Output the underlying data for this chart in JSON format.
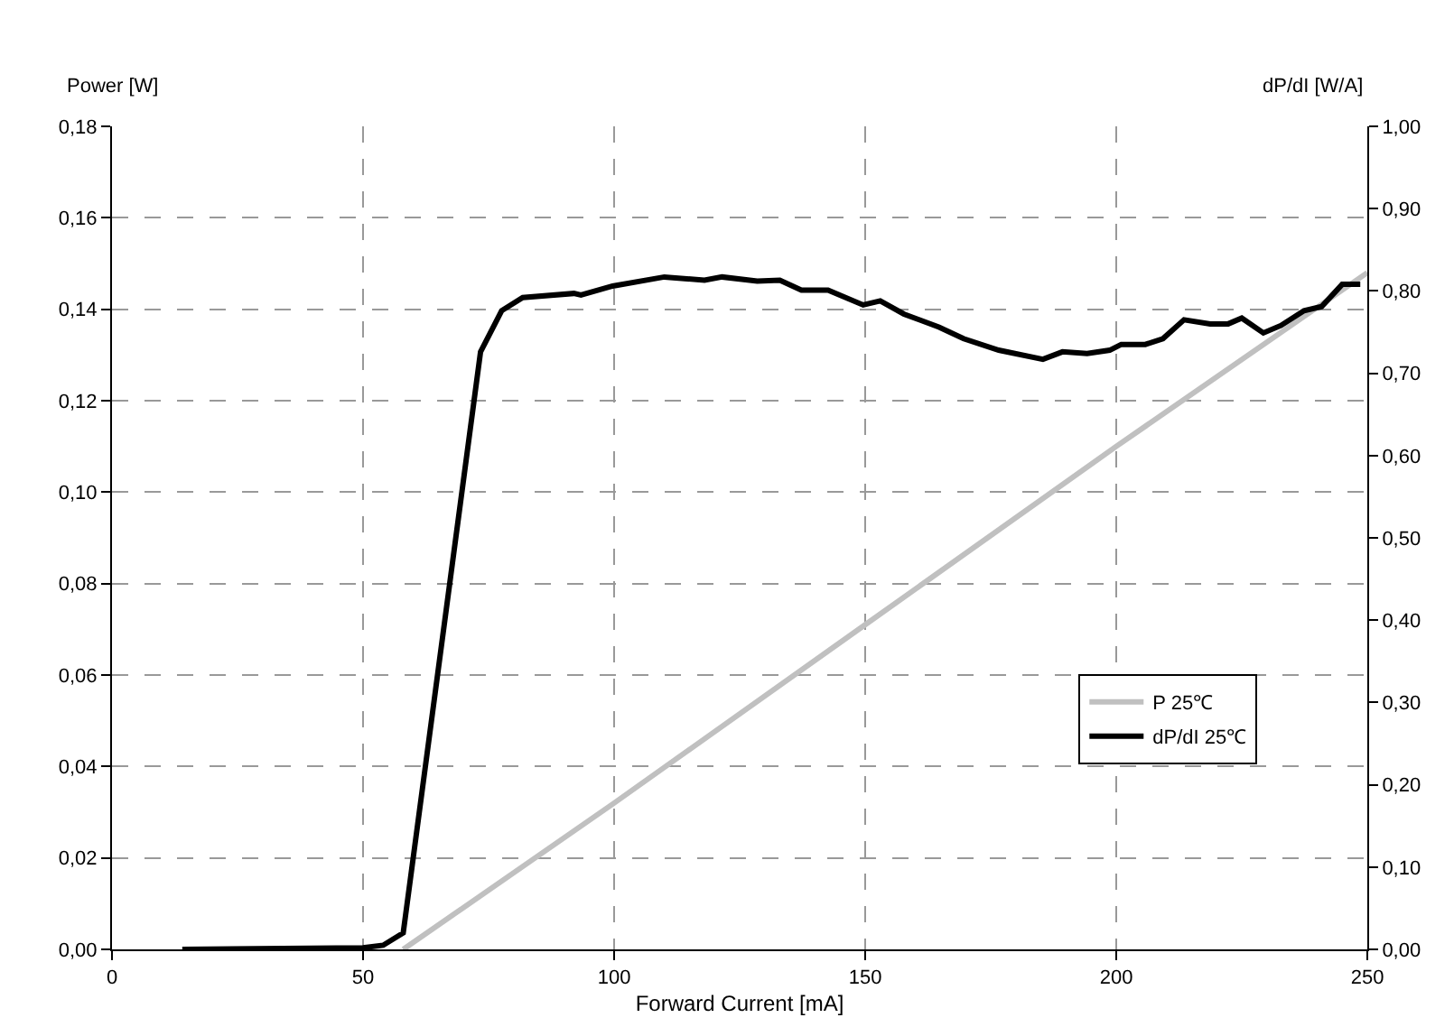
{
  "chart_data": {
    "type": "line",
    "xlabel": "Forward Current [mA]",
    "ylabel": "Power [W]",
    "y2label": "dP/dI [W/A]",
    "xlim": [
      0,
      250
    ],
    "xticks": [
      0,
      50,
      100,
      150,
      200,
      250
    ],
    "ylim": [
      0,
      0.18
    ],
    "yticks": [
      {
        "value": 0,
        "label": "0,00"
      },
      {
        "value": 0.02,
        "label": "0,02"
      },
      {
        "value": 0.04,
        "label": "0,04"
      },
      {
        "value": 0.06,
        "label": "0,06"
      },
      {
        "value": 0.08,
        "label": "0,08"
      },
      {
        "value": 0.1,
        "label": "0,10"
      },
      {
        "value": 0.12,
        "label": "0,12"
      },
      {
        "value": 0.14,
        "label": "0,14"
      },
      {
        "value": 0.16,
        "label": "0,16"
      },
      {
        "value": 0.18,
        "label": "0,18"
      }
    ],
    "y2lim": [
      0,
      1
    ],
    "y2ticks": [
      {
        "value": 0,
        "label": "0,00"
      },
      {
        "value": 0.1,
        "label": "0,10"
      },
      {
        "value": 0.2,
        "label": "0,20"
      },
      {
        "value": 0.3,
        "label": "0,30"
      },
      {
        "value": 0.4,
        "label": "0,40"
      },
      {
        "value": 0.5,
        "label": "0,50"
      },
      {
        "value": 0.6,
        "label": "0,60"
      },
      {
        "value": 0.7,
        "label": "0,70"
      },
      {
        "value": 0.8,
        "label": "0,80"
      },
      {
        "value": 0.9,
        "label": "0,90"
      },
      {
        "value": 1,
        "label": "1,00"
      }
    ],
    "grid": true,
    "legend": "right",
    "marker": "none",
    "line_style": "solid",
    "series": [
      {
        "name": "P 25℃",
        "color": "#c0c0c0",
        "x": [
          58,
          100,
          150,
          200,
          250
        ],
        "values": [
          0,
          0.032,
          0.071,
          0.11,
          0.148
        ]
      },
      {
        "name": "dP/dI 25℃",
        "color": "#000000",
        "axis": "y2",
        "x": [
          14,
          50,
          54,
          58,
          73.4,
          77.6,
          81.8,
          92,
          93.4,
          99.7,
          110,
          118,
          121.5,
          128.5,
          133,
          137.3,
          142.6,
          149.6,
          153,
          157.7,
          164.7,
          169.6,
          176.6,
          185.4,
          189.3,
          194.2,
          198.7,
          201,
          205.8,
          209.3,
          213.5,
          218.7,
          222.3,
          225,
          229.3,
          232.8,
          237.4,
          240.9,
          245,
          248.6
        ],
        "values": [
          0,
          0.002,
          0.005,
          0.02,
          0.726,
          0.776,
          0.792,
          0.797,
          0.795,
          0.806,
          0.817,
          0.813,
          0.817,
          0.812,
          0.813,
          0.801,
          0.801,
          0.783,
          0.788,
          0.772,
          0.756,
          0.742,
          0.728,
          0.717,
          0.726,
          0.724,
          0.728,
          0.735,
          0.735,
          0.742,
          0.765,
          0.76,
          0.76,
          0.767,
          0.749,
          0.758,
          0.776,
          0.781,
          0.808,
          0.808
        ]
      }
    ]
  }
}
